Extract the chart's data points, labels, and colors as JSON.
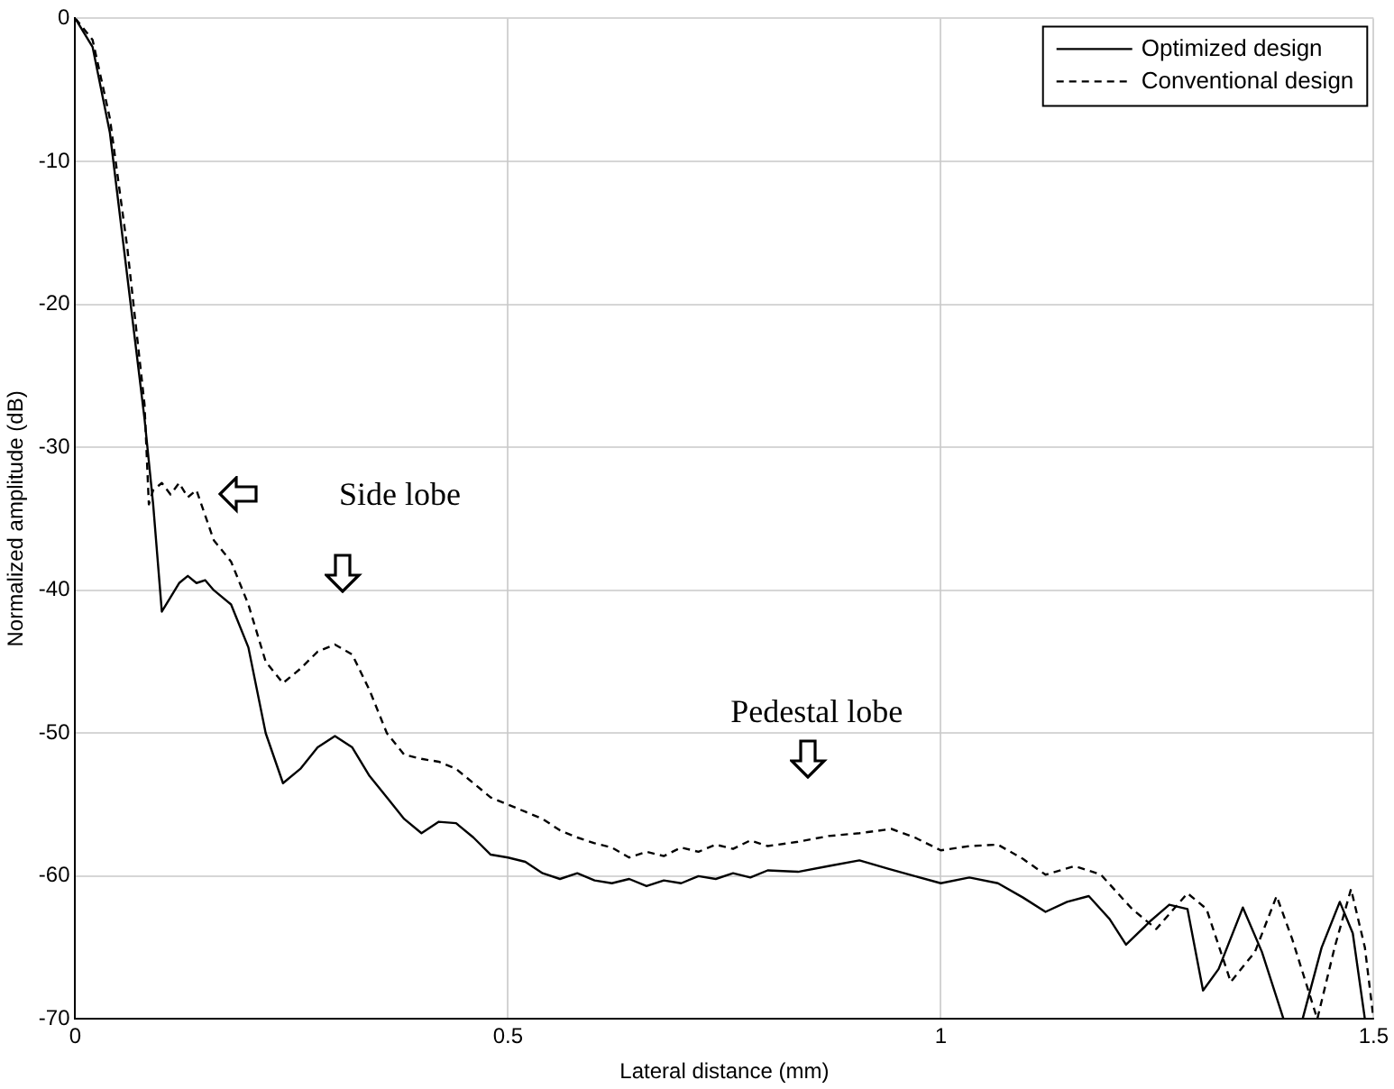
{
  "chart_data": {
    "type": "line",
    "xlabel": "Lateral distance (mm)",
    "ylabel": "Normalized amplitude (dB)",
    "xlim": [
      0,
      1.5
    ],
    "xticks": [
      0,
      0.5,
      1,
      1.5
    ],
    "ylim": [
      -70,
      0
    ],
    "yticks": [
      -70,
      -60,
      -50,
      -40,
      -30,
      -20,
      -10,
      0
    ],
    "grid": true,
    "legend": "top right",
    "marker": "none",
    "series": [
      {
        "name": "Optimized design",
        "color": "#000000",
        "line_style": "solid",
        "x": [
          0,
          0.02,
          0.04,
          0.06,
          0.08,
          0.09,
          0.1,
          0.11,
          0.12,
          0.13,
          0.14,
          0.15,
          0.16,
          0.18,
          0.2,
          0.22,
          0.24,
          0.26,
          0.28,
          0.3,
          0.32,
          0.34,
          0.36,
          0.38,
          0.4,
          0.42,
          0.44,
          0.46,
          0.48,
          0.5,
          0.52,
          0.54,
          0.56,
          0.58,
          0.6,
          0.62,
          0.64,
          0.66,
          0.68,
          0.7,
          0.72,
          0.74,
          0.76,
          0.78,
          0.8,
          0.835,
          0.87,
          0.906,
          0.94,
          0.97,
          1.0,
          1.033,
          1.066,
          1.095,
          1.121,
          1.146,
          1.171,
          1.195,
          1.214,
          1.243,
          1.264,
          1.285,
          1.303,
          1.321,
          1.349,
          1.371,
          1.396,
          1.418,
          1.44,
          1.461,
          1.476,
          1.49
        ],
        "values": [
          0,
          -2,
          -8,
          -18,
          -28,
          -34,
          -41.5,
          -40.5,
          -39.5,
          -39,
          -39.5,
          -39.3,
          -40,
          -41,
          -44,
          -50,
          -53.5,
          -52.5,
          -51,
          -50.2,
          -51,
          -53,
          -54.5,
          -56,
          -57,
          -56.2,
          -56.3,
          -57.3,
          -58.5,
          -58.7,
          -59,
          -59.8,
          -60.2,
          -59.8,
          -60.3,
          -60.5,
          -60.2,
          -60.7,
          -60.3,
          -60.5,
          -60,
          -60.2,
          -59.8,
          -60.1,
          -59.6,
          -59.7,
          -59.3,
          -58.9,
          -59.5,
          -60,
          -60.5,
          -60.1,
          -60.5,
          -61.5,
          -62.5,
          -61.8,
          -61.4,
          -63,
          -64.8,
          -63.1,
          -62,
          -62.3,
          -68,
          -66.5,
          -62.2,
          -65.3,
          -70,
          -70,
          -65,
          -61.8,
          -64,
          -70
        ]
      },
      {
        "name": "Conventional design",
        "color": "#000000",
        "line_style": "dashed",
        "x": [
          0,
          0.02,
          0.04,
          0.06,
          0.08,
          0.085,
          0.09,
          0.1,
          0.11,
          0.12,
          0.13,
          0.14,
          0.16,
          0.18,
          0.2,
          0.22,
          0.24,
          0.26,
          0.28,
          0.3,
          0.32,
          0.34,
          0.36,
          0.38,
          0.4,
          0.42,
          0.44,
          0.46,
          0.48,
          0.5,
          0.52,
          0.54,
          0.56,
          0.58,
          0.6,
          0.62,
          0.64,
          0.66,
          0.68,
          0.7,
          0.72,
          0.74,
          0.76,
          0.78,
          0.8,
          0.835,
          0.87,
          0.906,
          0.943,
          0.97,
          1.0,
          1.033,
          1.066,
          1.095,
          1.121,
          1.155,
          1.185,
          1.221,
          1.249,
          1.285,
          1.307,
          1.335,
          1.363,
          1.388,
          1.406,
          1.435,
          1.455,
          1.474,
          1.49,
          1.5
        ],
        "values": [
          0,
          -1.5,
          -7,
          -16,
          -27,
          -34,
          -33,
          -32.5,
          -33.3,
          -32.5,
          -33.5,
          -33,
          -36.5,
          -38,
          -41,
          -45,
          -46.5,
          -45.5,
          -44.3,
          -43.8,
          -44.5,
          -47,
          -50,
          -51.5,
          -51.8,
          -52,
          -52.5,
          -53.5,
          -54.5,
          -55,
          -55.5,
          -56,
          -56.8,
          -57.3,
          -57.7,
          -58,
          -58.7,
          -58.3,
          -58.6,
          -58,
          -58.3,
          -57.8,
          -58.1,
          -57.5,
          -57.9,
          -57.6,
          -57.2,
          -57,
          -56.7,
          -57.3,
          -58.2,
          -57.9,
          -57.8,
          -58.8,
          -59.9,
          -59.3,
          -59.9,
          -62.3,
          -63.7,
          -61.2,
          -62.3,
          -67.4,
          -65.3,
          -61.4,
          -64.4,
          -70,
          -65,
          -60.9,
          -65,
          -70
        ]
      }
    ],
    "annotations": [
      "Side lobe",
      "Pedestal lobe"
    ]
  }
}
